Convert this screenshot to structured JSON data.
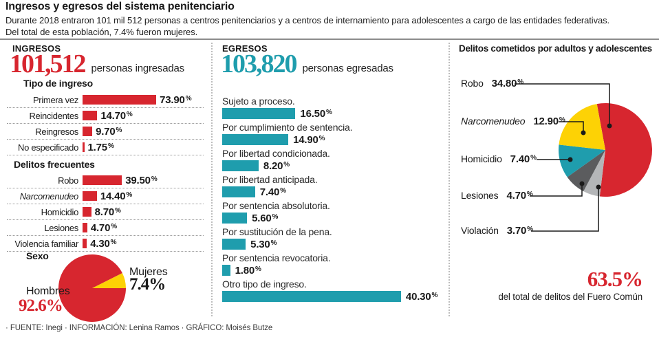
{
  "header": {
    "title": "Ingresos y egresos del sistema penitenciario",
    "subtitle_line1": "Durante 2018 entraron 101 mil 512 personas a centros penitenciarios y a centros de internamiento para adolescentes a cargo de las entidades federativas.",
    "subtitle_line2": "Del total de esta población, 7.4% fueron mujeres."
  },
  "ingresos": {
    "heading": "INGRESOS",
    "total": "101,512",
    "total_caption": "personas ingresadas",
    "tipo_heading": "Tipo de ingreso",
    "tipo_rows": [
      {
        "label": "Primera vez",
        "display": "73.90%",
        "value": 73.9
      },
      {
        "label": "Reincidentes",
        "display": "14.70%",
        "value": 14.7
      },
      {
        "label": "Reingresos",
        "display": "9.70%",
        "value": 9.7
      },
      {
        "label": "No especificado",
        "display": "1.75%",
        "value": 1.75
      }
    ],
    "delitos_heading": "Delitos frecuentes",
    "delitos_rows": [
      {
        "label": "Robo",
        "display": "39.50%",
        "value": 39.5
      },
      {
        "label": "Narcomenudeo",
        "display": "14.40%",
        "value": 14.4,
        "italic": true
      },
      {
        "label": "Homicidio",
        "display": "8.70%",
        "value": 8.7
      },
      {
        "label": "Lesiones",
        "display": "4.70%",
        "value": 4.7
      },
      {
        "label": "Violencia familiar",
        "display": "4.30%",
        "value": 4.3
      }
    ],
    "sexo_heading": "Sexo",
    "hombres_label": "Hombres",
    "hombres_value": "92.6%",
    "mujeres_label": "Mujeres",
    "mujeres_value": "7.4%"
  },
  "egresos": {
    "heading": "EGRESOS",
    "total": "103,820",
    "total_caption": "personas egresadas",
    "items": [
      {
        "label": "Sujeto a proceso.",
        "display": "16.50%",
        "value": 16.5
      },
      {
        "label": "Por cumplimiento de sentencia.",
        "display": "14.90%",
        "value": 14.9
      },
      {
        "label": "Por libertad condicionada.",
        "display": "8.20%",
        "value": 8.2
      },
      {
        "label": "Por libertad anticipada.",
        "display": "7.40%",
        "value": 7.4
      },
      {
        "label": "Por sentencia absolutoria.",
        "display": "5.60%",
        "value": 5.6
      },
      {
        "label": "Por sustitución de la pena.",
        "display": "5.30%",
        "value": 5.3
      },
      {
        "label": "Por sentencia revocatoria.",
        "display": "1.80%",
        "value": 1.8
      },
      {
        "label": "Otro tipo de ingreso.",
        "display": "40.30%",
        "value": 40.3
      }
    ]
  },
  "delitos_totales": {
    "heading": "Delitos cometidos por adultos y adolescentes",
    "slices": [
      {
        "label": "Robo",
        "display": "34.80%",
        "value": 34.8,
        "color": "#d7262f"
      },
      {
        "label": "Narcomenudeo",
        "display": "12.90%",
        "value": 12.9,
        "color": "#fdd205",
        "italic": true
      },
      {
        "label": "Homicidio",
        "display": "7.40%",
        "value": 7.4,
        "color": "#1f9dad"
      },
      {
        "label": "Lesiones",
        "display": "4.70%",
        "value": 4.7,
        "color": "#5b5c5e"
      },
      {
        "label": "Violación",
        "display": "3.70%",
        "value": 3.7,
        "color": "#b4b6b8"
      }
    ],
    "total_value": "63.5%",
    "total_caption": "del total de delitos del Fuero Común"
  },
  "footer": {
    "credits": "· FUENTE: Inegi · INFORMACIÓN: Lenina Ramos · GRÁFICO: Moisés Butze"
  },
  "colors": {
    "red": "#d7262f",
    "teal": "#1f9dad",
    "yellow": "#fdd205",
    "dark_gray": "#5b5c5e",
    "light_gray": "#b4b6b8"
  },
  "chart_data": [
    {
      "type": "bar",
      "title": "Tipo de ingreso",
      "orientation": "horizontal",
      "unit": "%",
      "categories": [
        "Primera vez",
        "Reincidentes",
        "Reingresos",
        "No especificado"
      ],
      "values": [
        73.9,
        14.7,
        9.7,
        1.75
      ],
      "color": "#d7262f"
    },
    {
      "type": "bar",
      "title": "Delitos frecuentes",
      "orientation": "horizontal",
      "unit": "%",
      "categories": [
        "Robo",
        "Narcomenudeo",
        "Homicidio",
        "Lesiones",
        "Violencia familiar"
      ],
      "values": [
        39.5,
        14.4,
        8.7,
        4.7,
        4.3
      ],
      "color": "#d7262f"
    },
    {
      "type": "pie",
      "title": "Sexo",
      "categories": [
        "Hombres",
        "Mujeres"
      ],
      "values": [
        92.6,
        7.4
      ],
      "colors": [
        "#d7262f",
        "#fdd205"
      ]
    },
    {
      "type": "bar",
      "title": "EGRESOS — 103,820 personas egresadas",
      "orientation": "horizontal",
      "unit": "%",
      "categories": [
        "Sujeto a proceso.",
        "Por cumplimiento de sentencia.",
        "Por libertad condicionada.",
        "Por libertad anticipada.",
        "Por sentencia absolutoria.",
        "Por sustitución de la pena.",
        "Por sentencia revocatoria.",
        "Otro tipo de ingreso."
      ],
      "values": [
        16.5,
        14.9,
        8.2,
        7.4,
        5.6,
        5.3,
        1.8,
        40.3
      ],
      "color": "#1f9dad"
    },
    {
      "type": "pie",
      "title": "Delitos cometidos por adultos y adolescentes",
      "categories": [
        "Robo",
        "Narcomenudeo",
        "Homicidio",
        "Lesiones",
        "Violación"
      ],
      "values": [
        34.8,
        12.9,
        7.4,
        4.7,
        3.7
      ],
      "colors": [
        "#d7262f",
        "#fdd205",
        "#1f9dad",
        "#5b5c5e",
        "#b4b6b8"
      ],
      "annotation": "63.5% del total de delitos del Fuero Común"
    }
  ]
}
